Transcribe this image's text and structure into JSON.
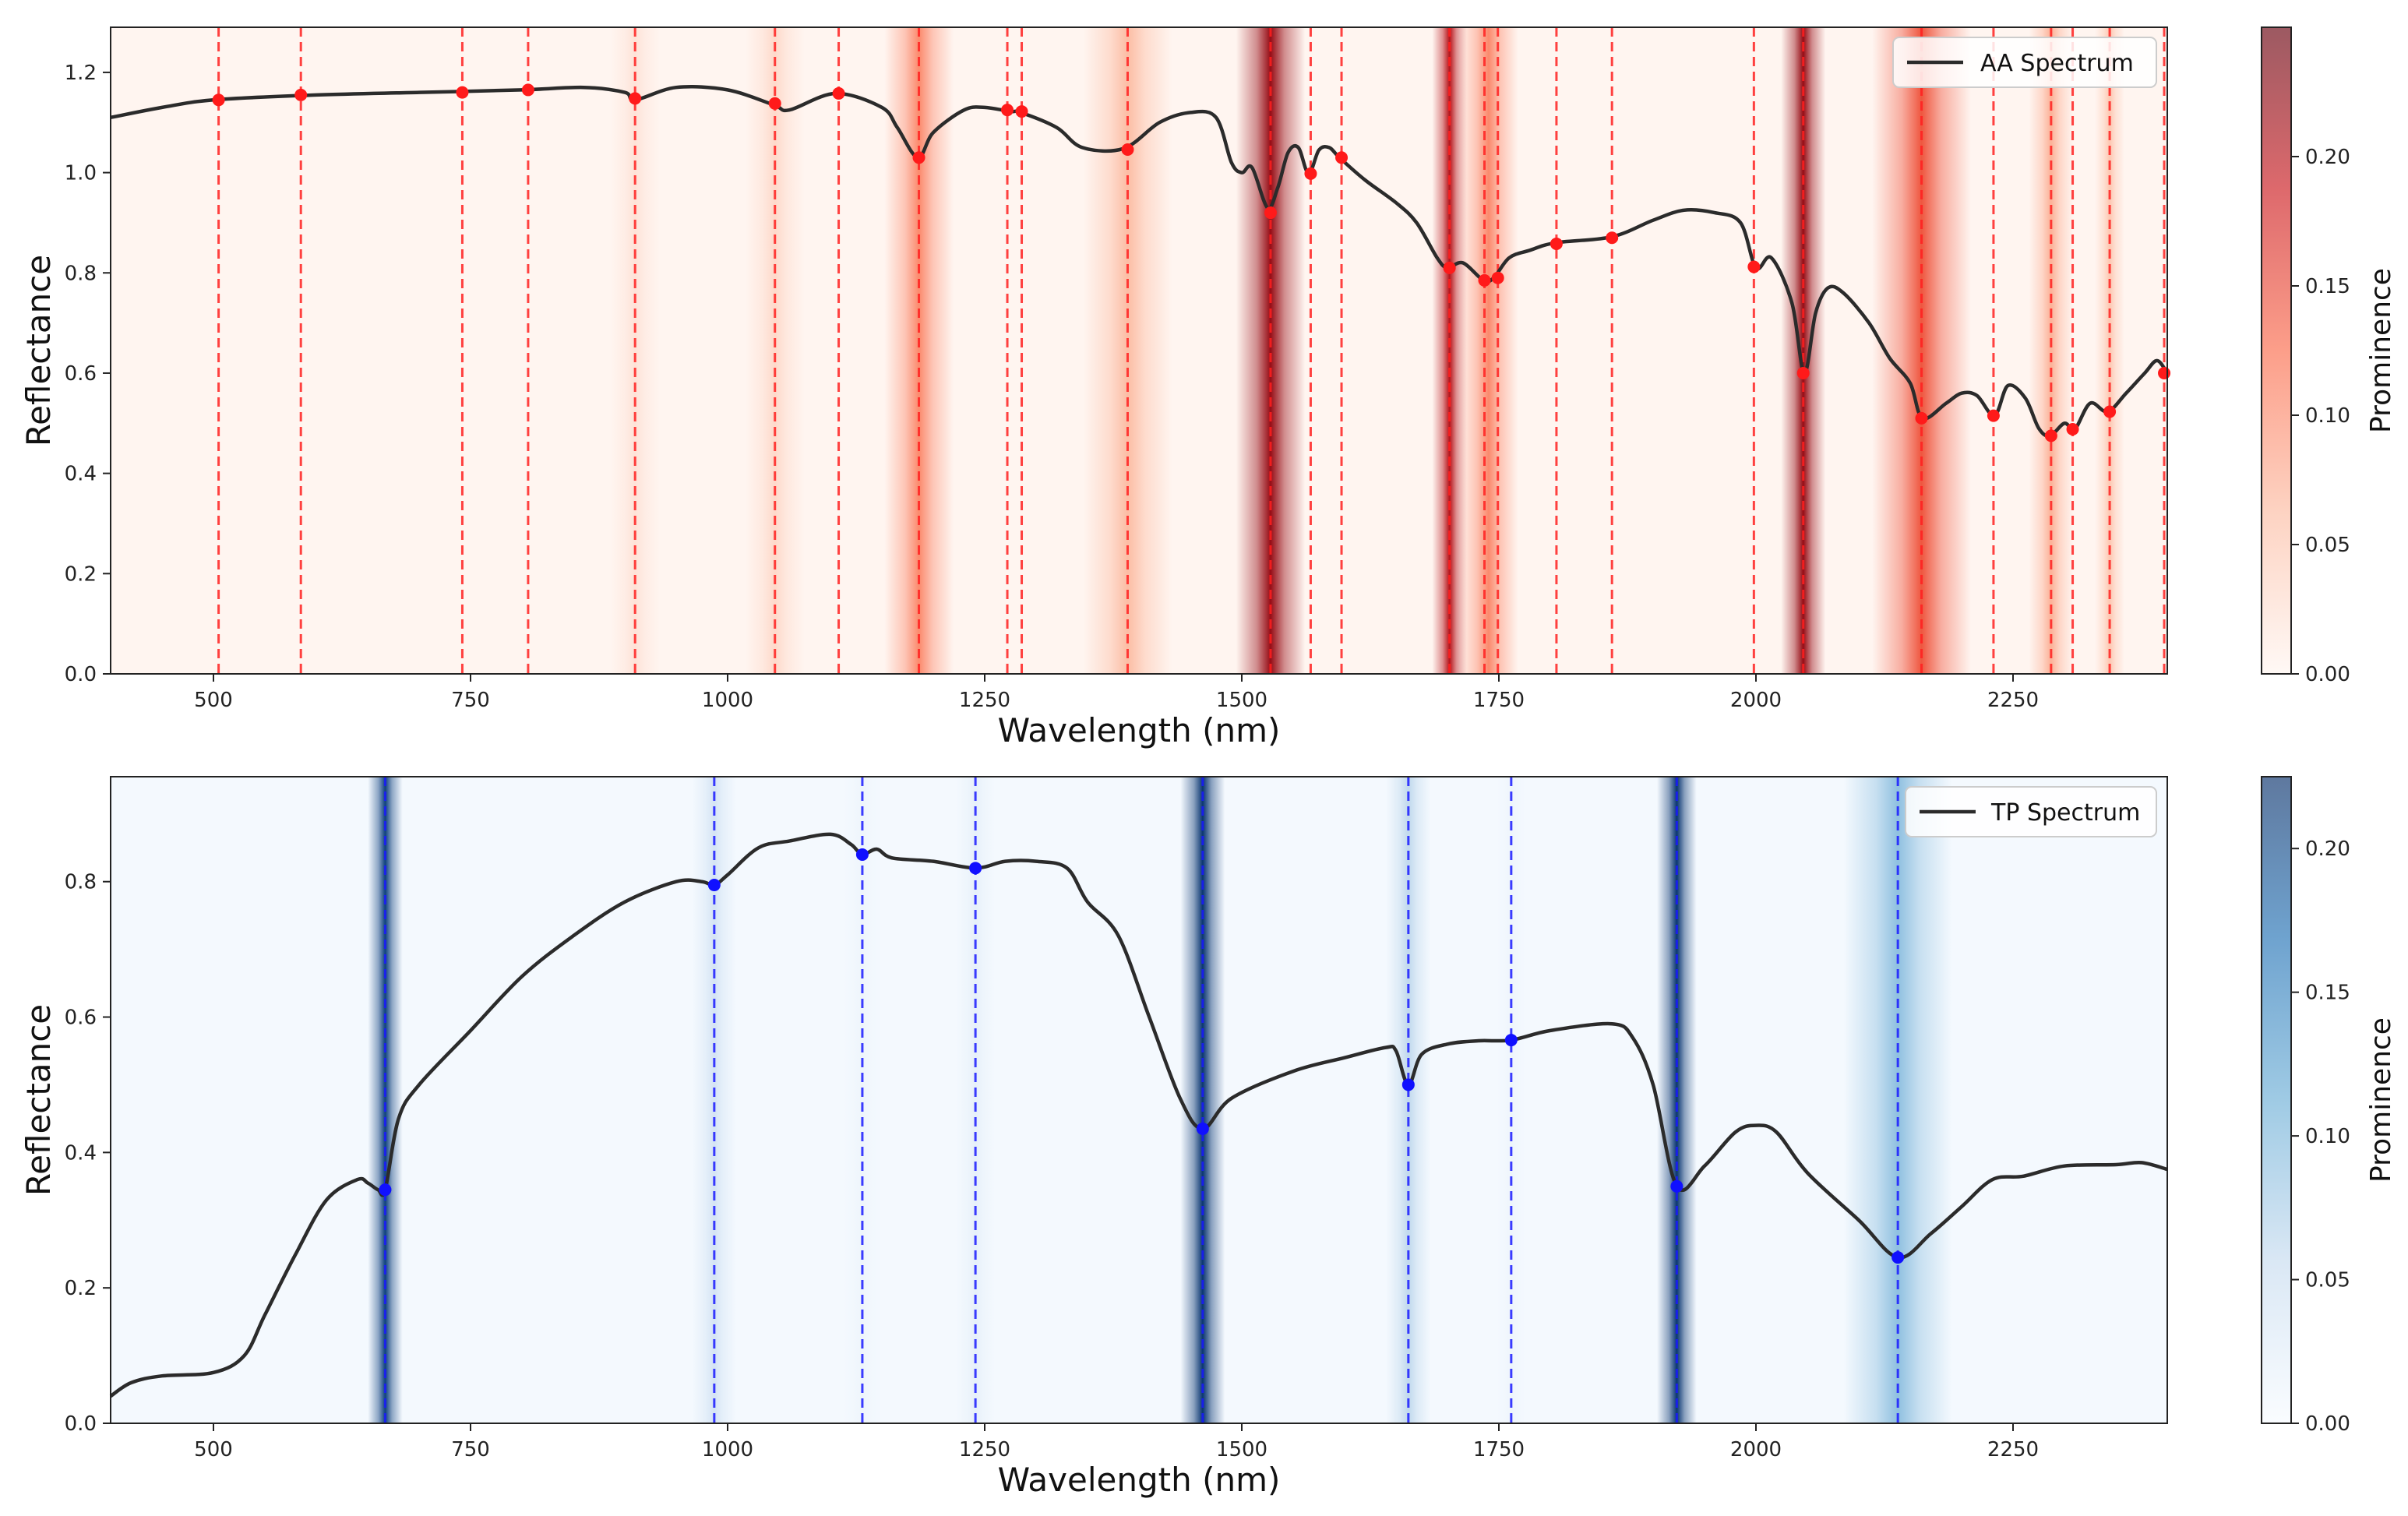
{
  "chart_data": [
    {
      "type": "line",
      "series_name": "AA Spectrum",
      "xlabel": "Wavelength (nm)",
      "ylabel": "Reflectance",
      "xlim": [
        400,
        2400
      ],
      "ylim": [
        0,
        1.29
      ],
      "xticks": [
        500,
        750,
        1000,
        1250,
        1500,
        1750,
        2000,
        2250
      ],
      "yticks": [
        0.0,
        0.2,
        0.4,
        0.6,
        0.8,
        1.0,
        1.2
      ],
      "colorbar_label": "Prominence",
      "colorbar_max": 0.25,
      "colorbar_ticks": [
        0.0,
        0.05,
        0.1,
        0.15,
        0.2
      ],
      "legend_position": "top-right",
      "colormap": "reds",
      "line_color": "#2b2b2b",
      "marker_color": "#ff1a1a",
      "curve": {
        "x": [
          400,
          450,
          500,
          600,
          700,
          800,
          860,
          900,
          910,
          950,
          1000,
          1045,
          1060,
          1105,
          1150,
          1165,
          1185,
          1200,
          1230,
          1250,
          1275,
          1285,
          1320,
          1345,
          1385,
          1420,
          1450,
          1475,
          1490,
          1500,
          1510,
          1525,
          1535,
          1545,
          1555,
          1565,
          1575,
          1585,
          1595,
          1620,
          1650,
          1670,
          1690,
          1700,
          1715,
          1735,
          1745,
          1760,
          1780,
          1805,
          1860,
          1900,
          1930,
          1960,
          1985,
          2000,
          2015,
          2035,
          2047,
          2058,
          2070,
          2085,
          2110,
          2130,
          2150,
          2162,
          2185,
          2200,
          2215,
          2232,
          2245,
          2262,
          2275,
          2286,
          2300,
          2310,
          2325,
          2342,
          2360,
          2378,
          2390,
          2400
        ],
        "y": [
          1.11,
          1.13,
          1.145,
          1.155,
          1.16,
          1.165,
          1.17,
          1.16,
          1.145,
          1.17,
          1.165,
          1.135,
          1.125,
          1.158,
          1.13,
          1.09,
          1.03,
          1.08,
          1.125,
          1.13,
          1.122,
          1.12,
          1.09,
          1.05,
          1.048,
          1.1,
          1.12,
          1.11,
          1.02,
          1.0,
          1.01,
          0.93,
          0.97,
          1.04,
          1.05,
          0.998,
          1.045,
          1.05,
          1.03,
          0.985,
          0.94,
          0.9,
          0.83,
          0.81,
          0.82,
          0.785,
          0.79,
          0.83,
          0.845,
          0.86,
          0.872,
          0.905,
          0.925,
          0.92,
          0.9,
          0.81,
          0.83,
          0.74,
          0.6,
          0.72,
          0.77,
          0.76,
          0.7,
          0.63,
          0.58,
          0.51,
          0.54,
          0.56,
          0.555,
          0.515,
          0.575,
          0.55,
          0.49,
          0.475,
          0.5,
          0.488,
          0.54,
          0.523,
          0.56,
          0.6,
          0.625,
          0.6
        ]
      },
      "markers": {
        "x": [
          505,
          585,
          742,
          806,
          910,
          1046,
          1108,
          1186,
          1272,
          1286,
          1389,
          1528,
          1567,
          1597,
          1702,
          1736,
          1749,
          1806,
          1860,
          1998,
          2046,
          2161,
          2231,
          2287,
          2308,
          2344,
          2397
        ],
        "y": [
          1.145,
          1.155,
          1.16,
          1.165,
          1.148,
          1.138,
          1.158,
          1.03,
          1.125,
          1.122,
          1.046,
          0.92,
          0.998,
          1.03,
          0.81,
          0.785,
          0.79,
          0.858,
          0.87,
          0.812,
          0.6,
          0.51,
          0.515,
          0.475,
          0.488,
          0.523,
          0.6
        ]
      },
      "bands": [
        {
          "x": 1186,
          "prominence": 0.1,
          "width": 14
        },
        {
          "x": 1389,
          "prominence": 0.06,
          "width": 18
        },
        {
          "x": 1528,
          "prominence": 0.22,
          "width": 14
        },
        {
          "x": 1702,
          "prominence": 0.2,
          "width": 7
        },
        {
          "x": 1740,
          "prominence": 0.1,
          "width": 12
        },
        {
          "x": 2046,
          "prominence": 0.22,
          "width": 9
        },
        {
          "x": 2161,
          "prominence": 0.14,
          "width": 20
        },
        {
          "x": 2287,
          "prominence": 0.07,
          "width": 9
        },
        {
          "x": 2344,
          "prominence": 0.05,
          "width": 6
        },
        {
          "x": 1046,
          "prominence": 0.03,
          "width": 12
        },
        {
          "x": 910,
          "prominence": 0.02,
          "width": 10
        }
      ]
    },
    {
      "type": "line",
      "series_name": "TP Spectrum",
      "xlabel": "Wavelength (nm)",
      "ylabel": "Reflectance",
      "xlim": [
        400,
        2400
      ],
      "ylim": [
        0,
        0.955
      ],
      "xticks": [
        500,
        750,
        1000,
        1250,
        1500,
        1750,
        2000,
        2250
      ],
      "yticks": [
        0.0,
        0.2,
        0.4,
        0.6,
        0.8
      ],
      "colorbar_label": "Prominence",
      "colorbar_max": 0.225,
      "colorbar_ticks": [
        0.0,
        0.05,
        0.1,
        0.15,
        0.2
      ],
      "legend_position": "top-right",
      "colormap": "blues",
      "line_color": "#2b2b2b",
      "marker_color": "#1010ff",
      "curve": {
        "x": [
          400,
          420,
          450,
          500,
          530,
          550,
          580,
          610,
          640,
          650,
          660,
          667,
          680,
          700,
          750,
          800,
          850,
          900,
          950,
          975,
          987,
          1000,
          1030,
          1060,
          1100,
          1120,
          1131,
          1145,
          1160,
          1200,
          1241,
          1270,
          1300,
          1330,
          1350,
          1380,
          1410,
          1440,
          1462,
          1490,
          1550,
          1600,
          1640,
          1650,
          1662,
          1675,
          1700,
          1730,
          1762,
          1800,
          1860,
          1880,
          1900,
          1923,
          1950,
          1980,
          2000,
          2020,
          2050,
          2100,
          2138,
          2170,
          2200,
          2230,
          2260,
          2300,
          2350,
          2375,
          2400
        ],
        "y": [
          0.04,
          0.06,
          0.07,
          0.075,
          0.1,
          0.16,
          0.25,
          0.33,
          0.36,
          0.355,
          0.345,
          0.345,
          0.45,
          0.5,
          0.58,
          0.66,
          0.72,
          0.77,
          0.8,
          0.8,
          0.795,
          0.81,
          0.85,
          0.86,
          0.87,
          0.855,
          0.84,
          0.848,
          0.835,
          0.83,
          0.82,
          0.83,
          0.83,
          0.82,
          0.77,
          0.72,
          0.6,
          0.48,
          0.435,
          0.48,
          0.52,
          0.54,
          0.555,
          0.55,
          0.5,
          0.545,
          0.56,
          0.565,
          0.566,
          0.58,
          0.59,
          0.57,
          0.5,
          0.35,
          0.38,
          0.43,
          0.44,
          0.43,
          0.37,
          0.3,
          0.245,
          0.28,
          0.32,
          0.36,
          0.365,
          0.38,
          0.382,
          0.385,
          0.375
        ]
      },
      "markers": {
        "x": [
          667,
          987,
          1131,
          1241,
          1462,
          1662,
          1762,
          1923,
          2138
        ],
        "y": [
          0.345,
          0.795,
          0.84,
          0.82,
          0.435,
          0.5,
          0.566,
          0.35,
          0.245
        ]
      },
      "bands": [
        {
          "x": 667,
          "prominence": 0.21,
          "width": 7
        },
        {
          "x": 987,
          "prominence": 0.04,
          "width": 9
        },
        {
          "x": 1131,
          "prominence": 0.01,
          "width": 8
        },
        {
          "x": 1241,
          "prominence": 0.02,
          "width": 8
        },
        {
          "x": 1462,
          "prominence": 0.22,
          "width": 9
        },
        {
          "x": 1662,
          "prominence": 0.06,
          "width": 9
        },
        {
          "x": 1762,
          "prominence": 0.01,
          "width": 6
        },
        {
          "x": 1923,
          "prominence": 0.22,
          "width": 8
        },
        {
          "x": 2138,
          "prominence": 0.09,
          "width": 22
        }
      ]
    }
  ]
}
